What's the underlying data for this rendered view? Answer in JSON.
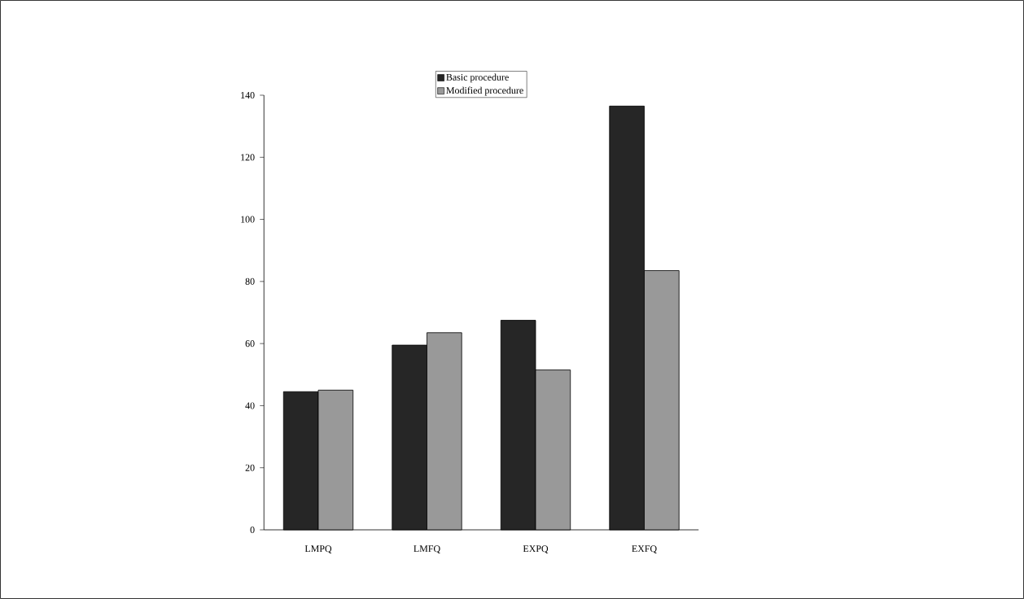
{
  "chart_data": {
    "type": "bar",
    "categories": [
      "LMPQ",
      "LMFQ",
      "EXPQ",
      "EXFQ"
    ],
    "series": [
      {
        "name": "Basic procedure",
        "color": "#262626",
        "values": [
          44.5,
          59.5,
          67.5,
          136.5
        ]
      },
      {
        "name": "Modified procedure",
        "color": "#999999",
        "values": [
          45,
          63.5,
          51.5,
          83.5
        ]
      }
    ],
    "ylim": [
      0,
      140
    ],
    "yticks": [
      0,
      20,
      40,
      60,
      80,
      100,
      120,
      140
    ],
    "legend": "top"
  }
}
